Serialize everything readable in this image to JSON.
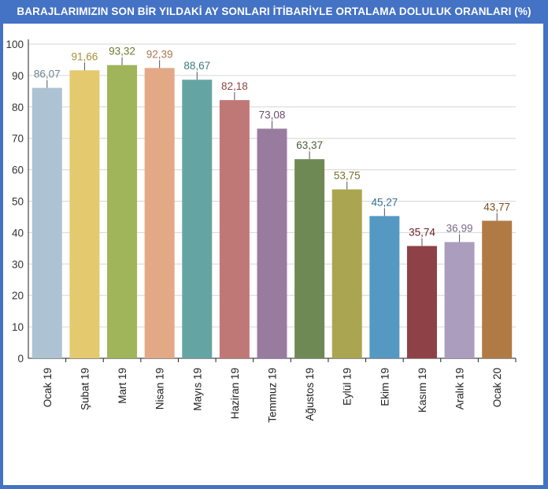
{
  "chart_data": {
    "type": "bar",
    "title": "BARAJLARIMIZIN SON BİR YILDAKİ AY SONLARI İTİBARİYLE ORTALAMA DOLULUK ORANLARI (%)",
    "categories": [
      "Ocak 19",
      "Şubat 19",
      "Mart 19",
      "Nisan 19",
      "Mayıs 19",
      "Haziran 19",
      "Temmuz 19",
      "Ağustos 19",
      "Eylül 19",
      "Ekim 19",
      "Kasım 19",
      "Aralık 19",
      "Ocak 20"
    ],
    "values": [
      86.07,
      91.66,
      93.32,
      92.39,
      88.67,
      82.18,
      73.08,
      63.37,
      53.75,
      45.27,
      35.74,
      36.99,
      43.77
    ],
    "value_labels": [
      "86,07",
      "91,66",
      "93,32",
      "92,39",
      "88,67",
      "82,18",
      "73,08",
      "63,37",
      "53,75",
      "45,27",
      "35,74",
      "36,99",
      "43,77"
    ],
    "ylim": [
      0,
      100
    ],
    "yticks": [
      "0",
      "10",
      "20",
      "30",
      "40",
      "50",
      "60",
      "70",
      "80",
      "90",
      "100"
    ],
    "grid": true,
    "colors": [
      "#adc3d3",
      "#e4c96e",
      "#a0b45a",
      "#e3a987",
      "#64a5a4",
      "#c07876",
      "#9a7ba0",
      "#6f8955",
      "#aaa550",
      "#5598c2",
      "#8e4146",
      "#aa9dbd",
      "#b17a44"
    ],
    "label_colors": [
      "#6d8795",
      "#a98f35",
      "#6c7a2c",
      "#a9764f",
      "#3a7b79",
      "#8d4543",
      "#6c4d72",
      "#4c5f36",
      "#777229",
      "#36708f",
      "#6b2228",
      "#776a8c",
      "#7c4f22"
    ]
  }
}
